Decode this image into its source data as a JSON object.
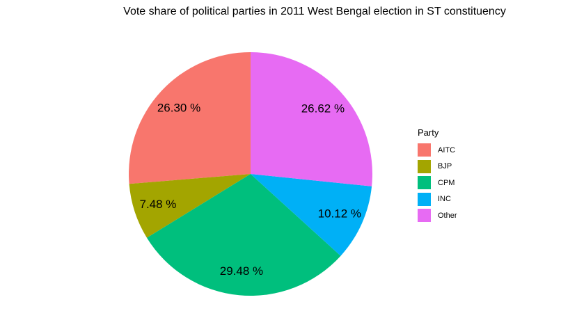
{
  "chart_data": {
    "type": "pie",
    "title": "Vote share of political parties in 2011 West Bengal election in ST constituency",
    "legend_title": "Party",
    "legend_position": "right",
    "categories": [
      "AITC",
      "BJP",
      "CPM",
      "INC",
      "Other"
    ],
    "values": [
      26.3,
      7.48,
      29.48,
      10.12,
      26.62
    ],
    "labels": [
      "26.30 %",
      "7.48 %",
      "29.48 %",
      "10.12 %",
      "26.62 %"
    ],
    "colors": [
      "#F8766D",
      "#A3A500",
      "#00BF7D",
      "#00B0F6",
      "#E76BF3"
    ]
  }
}
